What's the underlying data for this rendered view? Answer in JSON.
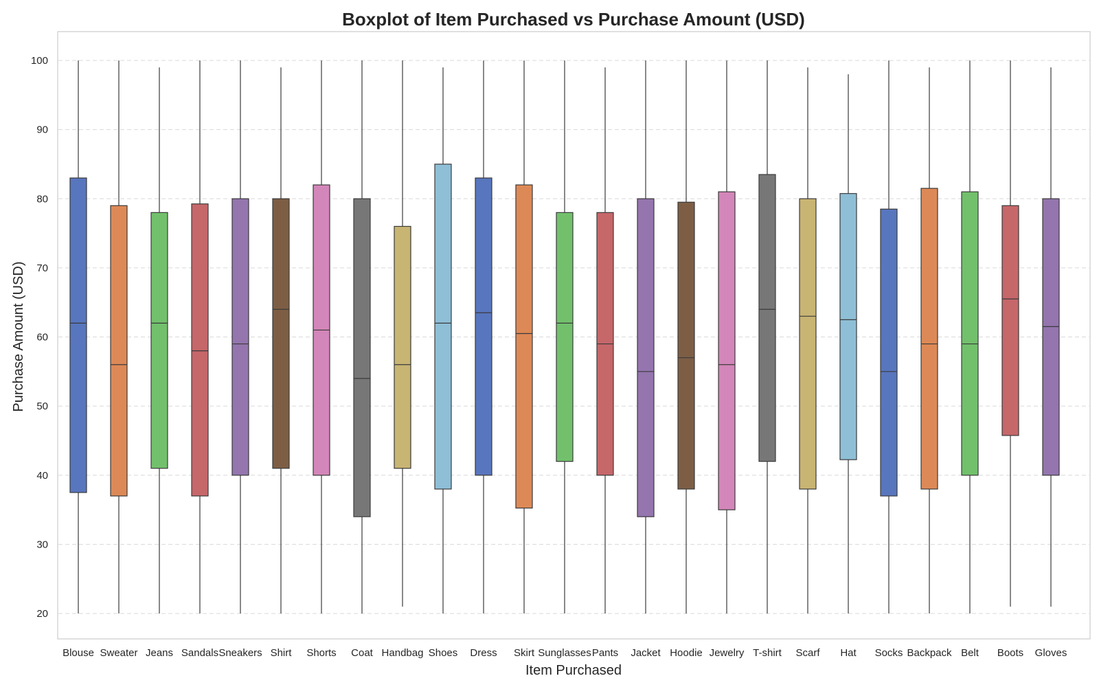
{
  "chart_data": {
    "type": "box",
    "title": "Boxplot of Item Purchased vs Purchase Amount (USD)",
    "xlabel": "Item Purchased",
    "ylabel": "Purchase Amount (USD)",
    "ylim": [
      16,
      104
    ],
    "yticks": [
      20,
      30,
      40,
      50,
      60,
      70,
      80,
      90,
      100
    ],
    "grid": true,
    "categories": [
      "Blouse",
      "Sweater",
      "Jeans",
      "Sandals",
      "Sneakers",
      "Shirt",
      "Shorts",
      "Coat",
      "Handbag",
      "Shoes",
      "Dress",
      "Skirt",
      "Sunglasses",
      "Pants",
      "Jacket",
      "Hoodie",
      "Jewelry",
      "T-shirt",
      "Scarf",
      "Hat",
      "Socks",
      "Backpack",
      "Belt",
      "Boots",
      "Gloves"
    ],
    "colors": [
      "#5876be",
      "#dd8957",
      "#72c06c",
      "#c6676a",
      "#9475ae",
      "#7d5e45",
      "#d386b9",
      "#777777",
      "#c8b473",
      "#8ebfd7",
      "#5876be",
      "#dd8957",
      "#72c06c",
      "#c6676a",
      "#9475ae",
      "#7d5e45",
      "#d386b9",
      "#777777",
      "#c8b473",
      "#8ebfd7",
      "#5876be",
      "#dd8957",
      "#72c06c",
      "#c6676a",
      "#9475ae"
    ],
    "boxes": [
      {
        "min": 20,
        "q1": 37.5,
        "median": 62,
        "q3": 83,
        "max": 100
      },
      {
        "min": 20,
        "q1": 37,
        "median": 56,
        "q3": 79,
        "max": 100
      },
      {
        "min": 20,
        "q1": 41,
        "median": 62,
        "q3": 78,
        "max": 99
      },
      {
        "min": 20,
        "q1": 37,
        "median": 58,
        "q3": 79.25,
        "max": 100
      },
      {
        "min": 20,
        "q1": 40,
        "median": 59,
        "q3": 80,
        "max": 100
      },
      {
        "min": 20,
        "q1": 41,
        "median": 64,
        "q3": 80,
        "max": 99
      },
      {
        "min": 20,
        "q1": 40,
        "median": 61,
        "q3": 82,
        "max": 100
      },
      {
        "min": 20,
        "q1": 34,
        "median": 54,
        "q3": 80,
        "max": 100
      },
      {
        "min": 21,
        "q1": 41,
        "median": 56,
        "q3": 76,
        "max": 100
      },
      {
        "min": 20,
        "q1": 38,
        "median": 62,
        "q3": 85,
        "max": 99
      },
      {
        "min": 20,
        "q1": 40,
        "median": 63.5,
        "q3": 83,
        "max": 100
      },
      {
        "min": 20,
        "q1": 35.25,
        "median": 60.5,
        "q3": 82,
        "max": 100
      },
      {
        "min": 20,
        "q1": 42,
        "median": 62,
        "q3": 78,
        "max": 100
      },
      {
        "min": 20,
        "q1": 40,
        "median": 59,
        "q3": 78,
        "max": 99
      },
      {
        "min": 20,
        "q1": 34,
        "median": 55,
        "q3": 80,
        "max": 100
      },
      {
        "min": 20,
        "q1": 38,
        "median": 57,
        "q3": 79.5,
        "max": 100
      },
      {
        "min": 20,
        "q1": 35,
        "median": 56,
        "q3": 81,
        "max": 100
      },
      {
        "min": 20,
        "q1": 42,
        "median": 64,
        "q3": 83.5,
        "max": 100
      },
      {
        "min": 20,
        "q1": 38,
        "median": 63,
        "q3": 80,
        "max": 99
      },
      {
        "min": 20,
        "q1": 42.25,
        "median": 62.5,
        "q3": 80.75,
        "max": 98
      },
      {
        "min": 20,
        "q1": 37,
        "median": 55,
        "q3": 78.5,
        "max": 100
      },
      {
        "min": 20,
        "q1": 38,
        "median": 59,
        "q3": 81.5,
        "max": 99
      },
      {
        "min": 20,
        "q1": 40,
        "median": 59,
        "q3": 81,
        "max": 100
      },
      {
        "min": 21,
        "q1": 45.75,
        "median": 65.5,
        "q3": 79,
        "max": 100
      },
      {
        "min": 21,
        "q1": 40,
        "median": 61.5,
        "q3": 80,
        "max": 99
      }
    ]
  }
}
